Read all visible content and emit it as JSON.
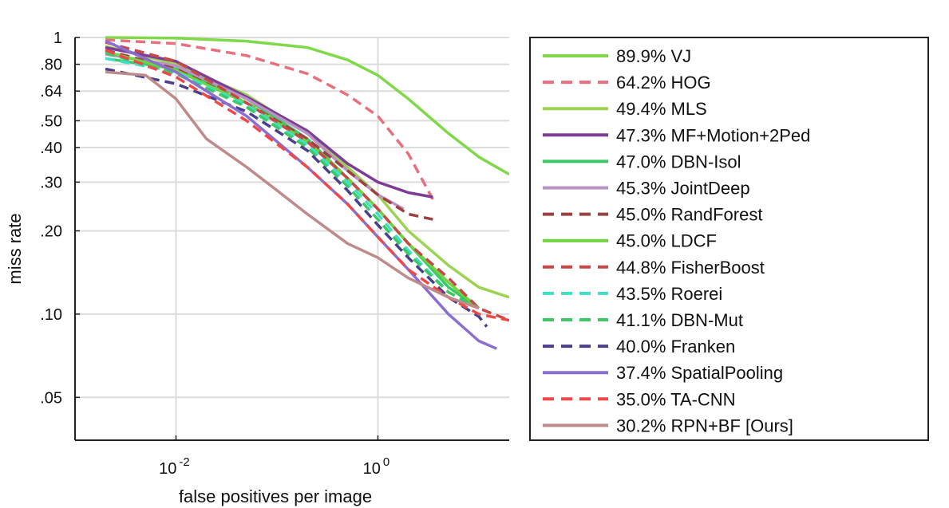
{
  "chart_data": {
    "type": "line",
    "title": "",
    "xlabel": "false positives per image",
    "ylabel": "miss rate",
    "xscale": "log",
    "yscale": "log",
    "xlim": [
      0.001,
      20
    ],
    "ylim": [
      0.035,
      1
    ],
    "x_ticks": [
      {
        "value": 0.01,
        "base": "10",
        "exp": "-2"
      },
      {
        "value": 1,
        "base": "10",
        "exp": "0"
      }
    ],
    "y_ticks": [
      {
        "value": 1,
        "label": "1"
      },
      {
        "value": 0.8,
        "label": ".80"
      },
      {
        "value": 0.64,
        "label": ".64"
      },
      {
        "value": 0.5,
        "label": ".50"
      },
      {
        "value": 0.4,
        "label": ".40"
      },
      {
        "value": 0.3,
        "label": ".30"
      },
      {
        "value": 0.2,
        "label": ".20"
      },
      {
        "value": 0.1,
        "label": ".10"
      },
      {
        "value": 0.05,
        "label": ".05"
      }
    ],
    "grid": true,
    "legend_position": "right",
    "series": [
      {
        "name": "89.9% VJ",
        "color": "#7fd94a",
        "dash": false,
        "points": [
          [
            0.002,
            1.0
          ],
          [
            0.01,
            0.995
          ],
          [
            0.05,
            0.97
          ],
          [
            0.2,
            0.92
          ],
          [
            0.5,
            0.83
          ],
          [
            1,
            0.73
          ],
          [
            2,
            0.6
          ],
          [
            5,
            0.45
          ],
          [
            10,
            0.37
          ],
          [
            20,
            0.32
          ]
        ]
      },
      {
        "name": "64.2% HOG",
        "color": "#e8707e",
        "dash": true,
        "points": [
          [
            0.002,
            0.98
          ],
          [
            0.01,
            0.95
          ],
          [
            0.05,
            0.86
          ],
          [
            0.2,
            0.74
          ],
          [
            0.5,
            0.62
          ],
          [
            1,
            0.52
          ],
          [
            2,
            0.38
          ],
          [
            3.5,
            0.26
          ]
        ]
      },
      {
        "name": "49.4% MLS",
        "color": "#9dd352",
        "dash": false,
        "points": [
          [
            0.002,
            0.93
          ],
          [
            0.01,
            0.8
          ],
          [
            0.05,
            0.62
          ],
          [
            0.2,
            0.45
          ],
          [
            0.5,
            0.34
          ],
          [
            1,
            0.27
          ],
          [
            2,
            0.2
          ],
          [
            5,
            0.15
          ],
          [
            10,
            0.125
          ],
          [
            20,
            0.115
          ]
        ]
      },
      {
        "name": "47.3% MF+Motion+2Ped",
        "color": "#7d3d96",
        "dash": false,
        "points": [
          [
            0.002,
            0.92
          ],
          [
            0.01,
            0.82
          ],
          [
            0.05,
            0.61
          ],
          [
            0.2,
            0.46
          ],
          [
            0.5,
            0.35
          ],
          [
            1,
            0.3
          ],
          [
            2,
            0.275
          ],
          [
            3.5,
            0.265
          ]
        ]
      },
      {
        "name": "47.0% DBN-Isol",
        "color": "#3cc864",
        "dash": false,
        "points": [
          [
            0.002,
            0.84
          ],
          [
            0.01,
            0.77
          ],
          [
            0.05,
            0.6
          ],
          [
            0.2,
            0.43
          ],
          [
            0.5,
            0.31
          ],
          [
            1,
            0.24
          ],
          [
            2,
            0.18
          ],
          [
            5,
            0.125
          ],
          [
            10,
            0.105
          ]
        ]
      },
      {
        "name": "45.3% JointDeep",
        "color": "#b893c3",
        "dash": false,
        "points": [
          [
            0.002,
            0.87
          ],
          [
            0.01,
            0.79
          ],
          [
            0.05,
            0.6
          ],
          [
            0.2,
            0.45
          ],
          [
            0.5,
            0.33
          ],
          [
            1,
            0.27
          ],
          [
            1.8,
            0.24
          ]
        ]
      },
      {
        "name": "45.0% RandForest",
        "color": "#9c4040",
        "dash": true,
        "points": [
          [
            0.002,
            0.9
          ],
          [
            0.01,
            0.77
          ],
          [
            0.05,
            0.58
          ],
          [
            0.2,
            0.43
          ],
          [
            0.5,
            0.33
          ],
          [
            1,
            0.27
          ],
          [
            2,
            0.23
          ],
          [
            3.5,
            0.22
          ]
        ]
      },
      {
        "name": "45.0% LDCF",
        "color": "#6fd43d",
        "dash": false,
        "points": [
          [
            0.002,
            0.89
          ],
          [
            0.01,
            0.76
          ],
          [
            0.05,
            0.58
          ],
          [
            0.2,
            0.42
          ],
          [
            0.5,
            0.31
          ],
          [
            1,
            0.24
          ],
          [
            2,
            0.18
          ],
          [
            5,
            0.13
          ],
          [
            10,
            0.105
          ]
        ]
      },
      {
        "name": "44.8% FisherBoost",
        "color": "#c84848",
        "dash": true,
        "points": [
          [
            0.002,
            0.96
          ],
          [
            0.01,
            0.82
          ],
          [
            0.05,
            0.58
          ],
          [
            0.2,
            0.42
          ],
          [
            0.5,
            0.31
          ],
          [
            1,
            0.24
          ],
          [
            2,
            0.18
          ],
          [
            5,
            0.135
          ],
          [
            10,
            0.105
          ],
          [
            20,
            0.095
          ]
        ]
      },
      {
        "name": "43.5% Roerei",
        "color": "#3fe0c6",
        "dash": true,
        "points": [
          [
            0.002,
            0.84
          ],
          [
            0.01,
            0.75
          ],
          [
            0.05,
            0.57
          ],
          [
            0.2,
            0.41
          ],
          [
            0.5,
            0.3
          ],
          [
            1,
            0.23
          ],
          [
            2,
            0.17
          ],
          [
            5,
            0.12
          ]
        ]
      },
      {
        "name": "41.1% DBN-Mut",
        "color": "#3cc864",
        "dash": true,
        "points": [
          [
            0.002,
            0.88
          ],
          [
            0.01,
            0.74
          ],
          [
            0.05,
            0.56
          ],
          [
            0.2,
            0.4
          ],
          [
            0.5,
            0.29
          ],
          [
            1,
            0.22
          ],
          [
            2,
            0.165
          ],
          [
            5,
            0.12
          ],
          [
            10,
            0.105
          ]
        ]
      },
      {
        "name": "40.0% Franken",
        "color": "#4a3f8a",
        "dash": true,
        "points": [
          [
            0.002,
            0.77
          ],
          [
            0.01,
            0.68
          ],
          [
            0.05,
            0.54
          ],
          [
            0.2,
            0.39
          ],
          [
            0.5,
            0.28
          ],
          [
            1,
            0.21
          ],
          [
            2,
            0.16
          ],
          [
            5,
            0.115
          ],
          [
            10,
            0.098
          ],
          [
            12,
            0.09
          ]
        ]
      },
      {
        "name": "37.4% SpatialPooling",
        "color": "#8a6fd0",
        "dash": false,
        "points": [
          [
            0.002,
            0.97
          ],
          [
            0.01,
            0.75
          ],
          [
            0.05,
            0.52
          ],
          [
            0.2,
            0.34
          ],
          [
            0.5,
            0.25
          ],
          [
            1,
            0.19
          ],
          [
            2,
            0.145
          ],
          [
            5,
            0.1
          ],
          [
            10,
            0.08
          ],
          [
            15,
            0.075
          ]
        ]
      },
      {
        "name": "35.0% TA-CNN",
        "color": "#f04848",
        "dash": true,
        "points": [
          [
            0.002,
            0.9
          ],
          [
            0.01,
            0.72
          ],
          [
            0.05,
            0.5
          ],
          [
            0.2,
            0.34
          ],
          [
            0.5,
            0.25
          ],
          [
            1,
            0.19
          ],
          [
            2,
            0.145
          ],
          [
            5,
            0.115
          ],
          [
            10,
            0.1
          ],
          [
            20,
            0.095
          ]
        ]
      },
      {
        "name": "30.2% RPN+BF [Ours]",
        "color": "#bf8a8a",
        "dash": false,
        "points": [
          [
            0.002,
            0.75
          ],
          [
            0.005,
            0.73
          ],
          [
            0.01,
            0.6
          ],
          [
            0.02,
            0.43
          ],
          [
            0.05,
            0.34
          ],
          [
            0.1,
            0.28
          ],
          [
            0.2,
            0.23
          ],
          [
            0.5,
            0.18
          ],
          [
            1,
            0.16
          ],
          [
            2,
            0.135
          ],
          [
            5,
            0.115
          ],
          [
            10,
            0.105
          ]
        ]
      }
    ]
  }
}
